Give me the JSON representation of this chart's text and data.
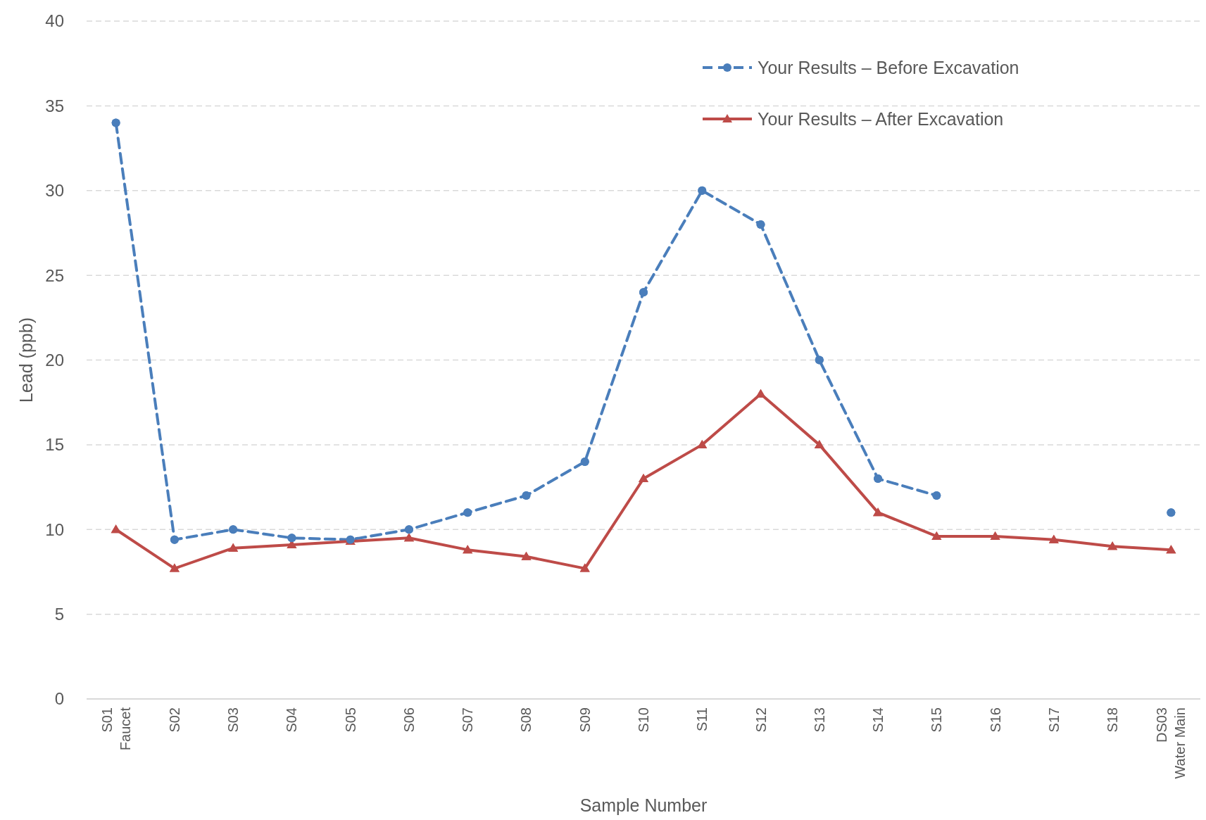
{
  "chart_data": {
    "type": "line",
    "xlabel": "Sample Number",
    "ylabel": "Lead (ppb)",
    "categories": [
      "S01 Faucet",
      "S02",
      "S03",
      "S04",
      "S05",
      "S06",
      "S07",
      "S08",
      "S09",
      "S10",
      "S11",
      "S12",
      "S13",
      "S14",
      "S15",
      "S16",
      "S17",
      "S18",
      "DS03 Water Main"
    ],
    "series": [
      {
        "name": "Your Results – Before Excavation",
        "color": "#4a7ebb",
        "marker": "circle",
        "line_style": "dashed",
        "values": [
          34,
          9.4,
          10,
          9.5,
          9.4,
          10,
          11,
          12,
          14,
          24,
          30,
          28,
          20,
          13,
          12,
          null,
          null,
          null,
          11
        ]
      },
      {
        "name": "Your Results – After Excavation",
        "color": "#be4b48",
        "marker": "triangle",
        "line_style": "solid",
        "values": [
          10,
          7.7,
          8.9,
          9.1,
          9.3,
          9.5,
          8.8,
          8.4,
          7.7,
          13,
          15,
          18,
          15,
          11,
          9.6,
          9.6,
          9.4,
          9.0,
          8.8
        ]
      }
    ],
    "ylim": [
      0,
      40
    ],
    "yticks": [
      0,
      5,
      10,
      15,
      20,
      25,
      30,
      35,
      40
    ],
    "grid": "y",
    "legend": "top right"
  }
}
